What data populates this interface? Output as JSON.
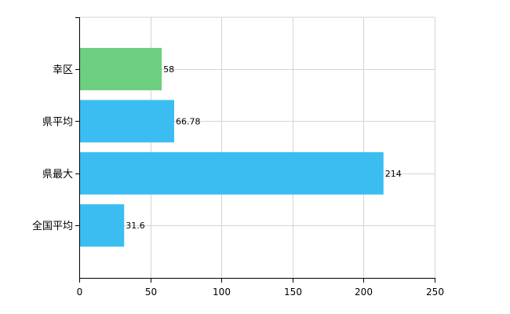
{
  "chart_data": {
    "type": "bar",
    "orientation": "horizontal",
    "categories": [
      "幸区",
      "県平均",
      "県最大",
      "全国平均"
    ],
    "values": [
      58,
      66.78,
      214,
      31.6
    ],
    "data_labels": [
      "58",
      "66.78",
      "214",
      "31.6"
    ],
    "colors": [
      "#6dcf80",
      "#3bbdf2",
      "#3bbdf2",
      "#3bbdf2"
    ],
    "title": "",
    "xlabel": "",
    "ylabel": "",
    "xlim": [
      0,
      250
    ],
    "x_ticks": [
      0,
      50,
      100,
      150,
      200,
      250
    ],
    "x_tick_labels": [
      "0",
      "50",
      "100",
      "150",
      "200",
      "250"
    ],
    "grid": true,
    "legend": "none"
  }
}
